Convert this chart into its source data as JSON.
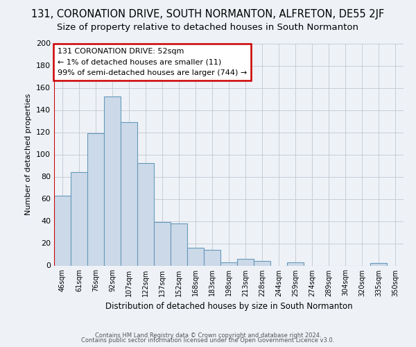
{
  "title": "131, CORONATION DRIVE, SOUTH NORMANTON, ALFRETON, DE55 2JF",
  "subtitle": "Size of property relative to detached houses in South Normanton",
  "xlabel": "Distribution of detached houses by size in South Normanton",
  "ylabel": "Number of detached properties",
  "bar_labels": [
    "46sqm",
    "61sqm",
    "76sqm",
    "92sqm",
    "107sqm",
    "122sqm",
    "137sqm",
    "152sqm",
    "168sqm",
    "183sqm",
    "198sqm",
    "213sqm",
    "228sqm",
    "244sqm",
    "259sqm",
    "274sqm",
    "289sqm",
    "304sqm",
    "320sqm",
    "335sqm",
    "350sqm"
  ],
  "bar_values": [
    63,
    84,
    119,
    152,
    129,
    92,
    39,
    38,
    16,
    14,
    3,
    6,
    4,
    0,
    3,
    0,
    0,
    0,
    0,
    2,
    0
  ],
  "bar_color": "#ccd9e8",
  "bar_edge_color": "#6699bb",
  "ylim": [
    0,
    200
  ],
  "yticks": [
    0,
    20,
    40,
    60,
    80,
    100,
    120,
    140,
    160,
    180,
    200
  ],
  "grid_color": "#c0c8d0",
  "bg_color": "#eef2f7",
  "annotation_box_text": "131 CORONATION DRIVE: 52sqm\n← 1% of detached houses are smaller (11)\n99% of semi-detached houses are larger (744) →",
  "annotation_box_color": "#ffffff",
  "annotation_box_edge_color": "#cc0000",
  "footer1": "Contains HM Land Registry data © Crown copyright and database right 2024.",
  "footer2": "Contains public sector information licensed under the Open Government Licence v3.0.",
  "title_fontsize": 10.5,
  "subtitle_fontsize": 9.5
}
